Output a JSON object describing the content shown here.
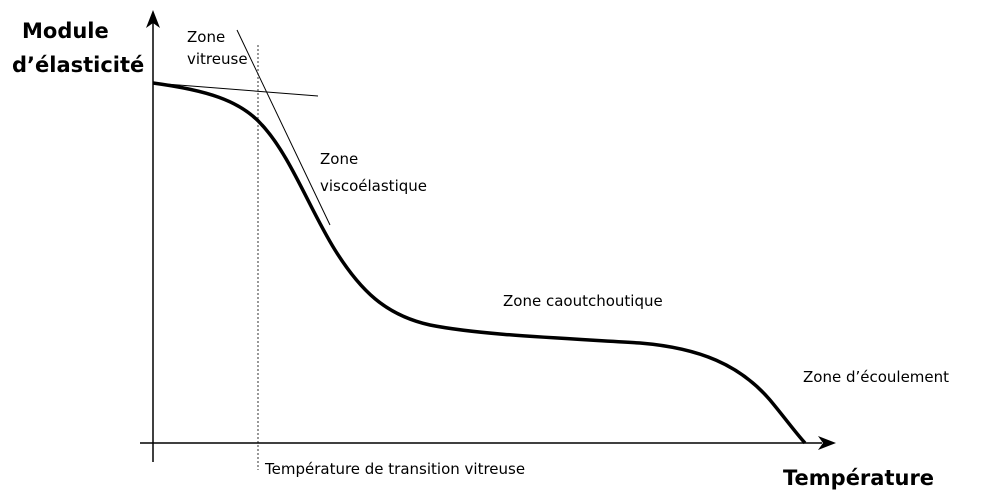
{
  "axes": {
    "y_label": [
      "Module",
      "d’élasticité"
    ],
    "x_label": "Température"
  },
  "zones": [
    {
      "lines": [
        "Zone",
        "vitreuse"
      ]
    },
    {
      "lines": [
        "Zone",
        "viscoélastique"
      ]
    },
    {
      "lines": [
        "Zone caoutchoutique"
      ]
    },
    {
      "lines": [
        "Zone d’écoulement"
      ]
    }
  ],
  "transition_label": "Température de transition vitreuse"
}
